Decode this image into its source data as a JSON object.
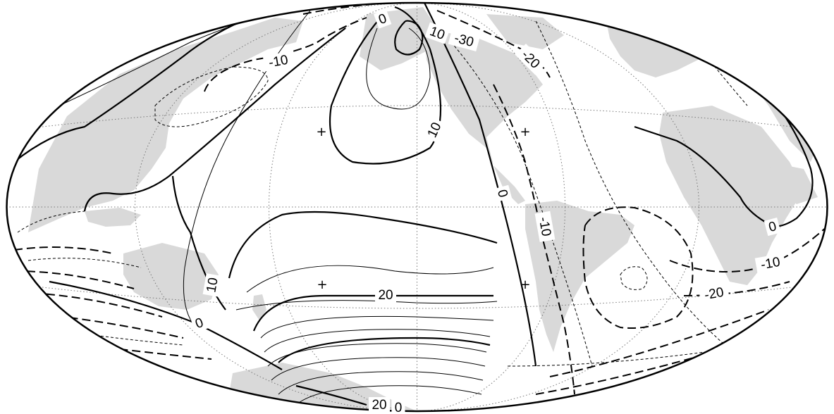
{
  "map": {
    "projection": "hammer",
    "land_color": "#d9d9d9",
    "ink_color": "#000000",
    "gridline_color": "#777777"
  },
  "contour_labels": [
    {
      "id": "top-0",
      "text": "0"
    },
    {
      "id": "top-10",
      "text": "10"
    },
    {
      "id": "top-neg30",
      "text": "-30"
    },
    {
      "id": "nw-neg10",
      "text": "-10"
    },
    {
      "id": "ne-neg20",
      "text": "-20"
    },
    {
      "id": "npac-10",
      "text": "10"
    },
    {
      "id": "atl-0",
      "text": "0"
    },
    {
      "id": "sam-neg10",
      "text": "-10"
    },
    {
      "id": "aus-0",
      "text": "0"
    },
    {
      "id": "sio-neg10",
      "text": "-10"
    },
    {
      "id": "sio-neg20",
      "text": "-20"
    },
    {
      "id": "pac-20",
      "text": "20"
    },
    {
      "id": "wpac-10",
      "text": "10"
    },
    {
      "id": "sw-0",
      "text": "0"
    },
    {
      "id": "bottom-20",
      "text": "20"
    },
    {
      "id": "bottom-0",
      "text": "0"
    }
  ],
  "markers": [
    {
      "id": "plus-npac",
      "symbol": "+"
    },
    {
      "id": "plus-carib",
      "symbol": "+"
    },
    {
      "id": "plus-spac",
      "symbol": "+"
    },
    {
      "id": "plus-sam",
      "symbol": "+"
    }
  ]
}
